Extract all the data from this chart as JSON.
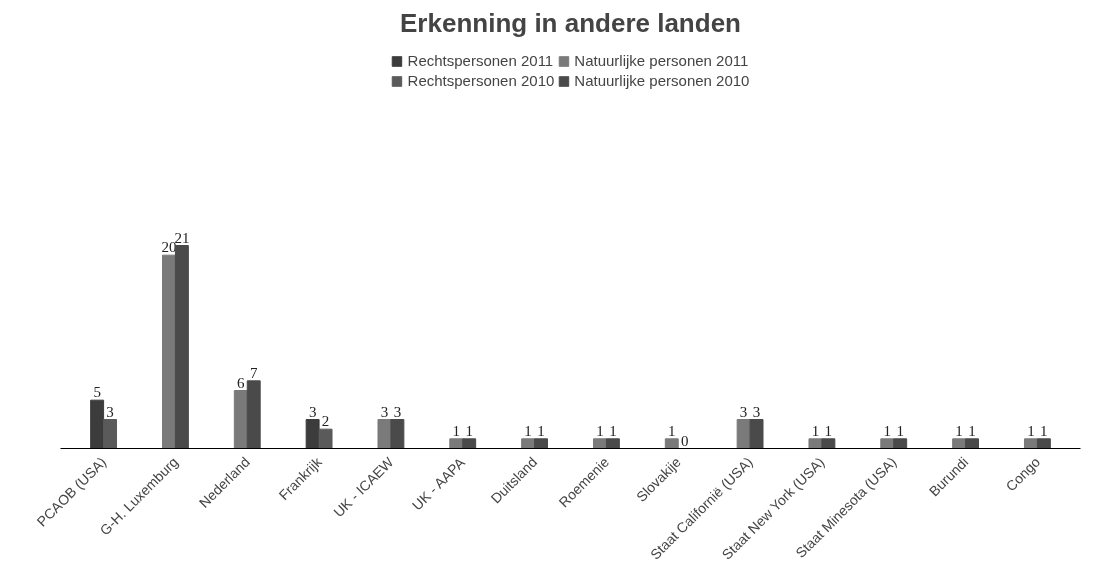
{
  "chart_data": {
    "type": "bar",
    "title": "Erkenning in andere landen",
    "categories": [
      "PCAOB (USA)",
      "G-H. Luxemburg",
      "Nederland",
      "Frankrijk",
      "UK - ICAEW",
      "UK - AAPA",
      "Duitsland",
      "Roemenie",
      "Slovakije",
      "Staat Californië (USA)",
      "Staat New York (USA)",
      "Staat Minesota (USA)",
      "Burundi",
      "Congo"
    ],
    "series": [
      {
        "name": "Rechtspersonen 2011",
        "color": "#3c3c3c",
        "values": [
          5,
          null,
          null,
          3,
          null,
          null,
          null,
          null,
          null,
          null,
          null,
          null,
          null,
          null
        ]
      },
      {
        "name": "Rechtspersonen 2010",
        "color": "#5a5a5a",
        "values": [
          3,
          null,
          null,
          2,
          null,
          null,
          null,
          null,
          null,
          null,
          null,
          null,
          null,
          null
        ]
      },
      {
        "name": "Natuurlijke personen 2011",
        "color": "#7a7a7a",
        "values": [
          null,
          20,
          6,
          null,
          3,
          1,
          1,
          1,
          1,
          3,
          1,
          1,
          1,
          1
        ]
      },
      {
        "name": "Natuurlijke personen 2010",
        "color": "#4a4a4a",
        "values": [
          null,
          21,
          7,
          null,
          3,
          1,
          1,
          1,
          0,
          3,
          1,
          1,
          1,
          1
        ]
      }
    ],
    "data_labels": true,
    "legend": "top",
    "grid": false
  }
}
